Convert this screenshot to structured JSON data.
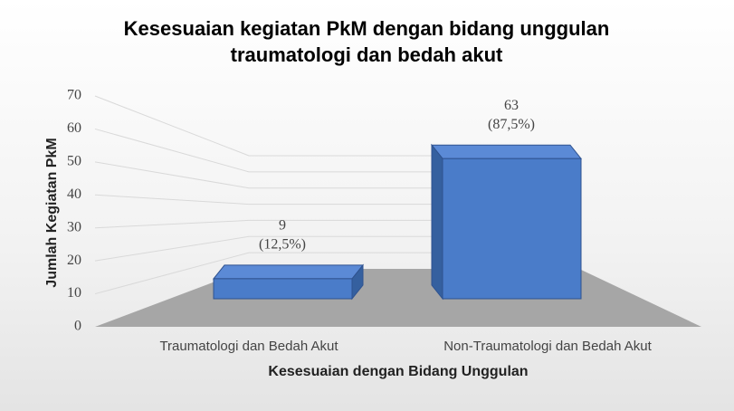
{
  "chart_data": {
    "type": "bar3d",
    "title": "Kesesuaian kegiatan PkM dengan bidang unggulan traumatologi dan bedah akut",
    "x_label": "Kesesuaian dengan Bidang Unggulan",
    "y_label": "Jumlah Kegiatan PkM",
    "categories": [
      "Traumatologi dan Bedah Akut",
      "Non-Traumatologi dan Bedah Akut"
    ],
    "values": [
      9,
      63
    ],
    "shares": [
      12.5,
      87.5
    ],
    "share_labels": [
      "(12,5%)",
      "(87,5%)"
    ],
    "color": "#4a7cc9",
    "ylim": [
      0,
      70
    ],
    "yticks": [
      0,
      10,
      20,
      30,
      40,
      50,
      60,
      70
    ],
    "grid": true
  }
}
